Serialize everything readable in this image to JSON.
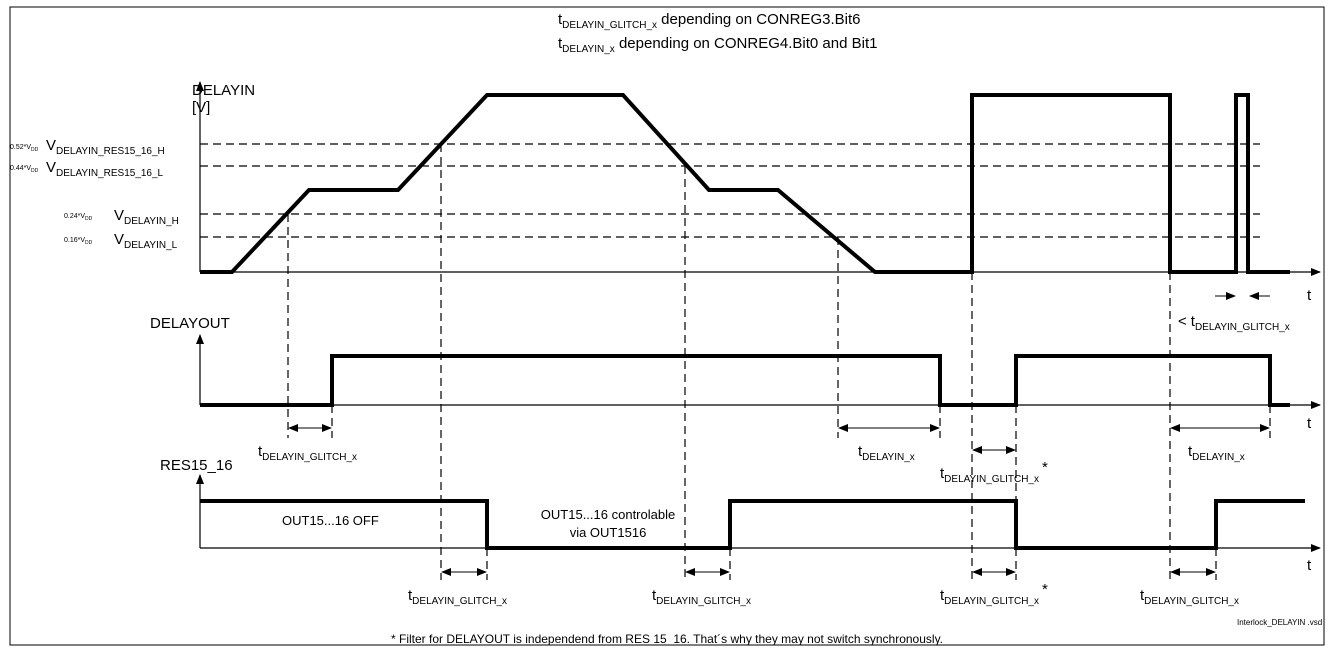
{
  "header": {
    "line1_main": "t",
    "line1_sub": "DELAYIN_GLITCH_x",
    "line1_rest": " depending on CONREG3.Bit6",
    "line2_main": "t",
    "line2_sub": "DELAYIN_x",
    "line2_rest": " depending on CONREG4.Bit0 and Bit1"
  },
  "axes": {
    "delayin_title": "DELAYIN",
    "delayin_unit": "[V]",
    "delayout_title": "DELAYOUT",
    "res_title": "RES15_16",
    "t_label": "t"
  },
  "thresholds": [
    {
      "factor": "0.52*V",
      "factor_sub": "DD",
      "name_main": "V",
      "name_sub": "DELAYIN_RES15_16_H"
    },
    {
      "factor": "0.44*V",
      "factor_sub": "DD",
      "name_main": "V",
      "name_sub": "DELAYIN_RES15_16_L"
    },
    {
      "factor": "0.24*V",
      "factor_sub": "DD",
      "name_main": "V",
      "name_sub": "DELAYIN_H"
    },
    {
      "factor": "0.16*V",
      "factor_sub": "DD",
      "name_main": "V",
      "name_sub": "DELAYIN_L"
    }
  ],
  "timing_labels": {
    "t": "t",
    "glitch_sub": "DELAYIN_GLITCH_x",
    "delay_sub": "DELAYIN_x",
    "star": "*",
    "less_than": "<"
  },
  "res_texts": {
    "off": "OUT15...16 OFF",
    "ctrl_line1": "OUT15...16 controlable",
    "ctrl_line2": "via OUT1516"
  },
  "file_name": "Interlock_DELAYIN .vsd",
  "footnote": "* Filter for DELAYOUT is independend from RES 15_16. That´s why they may not switch synchronously."
}
